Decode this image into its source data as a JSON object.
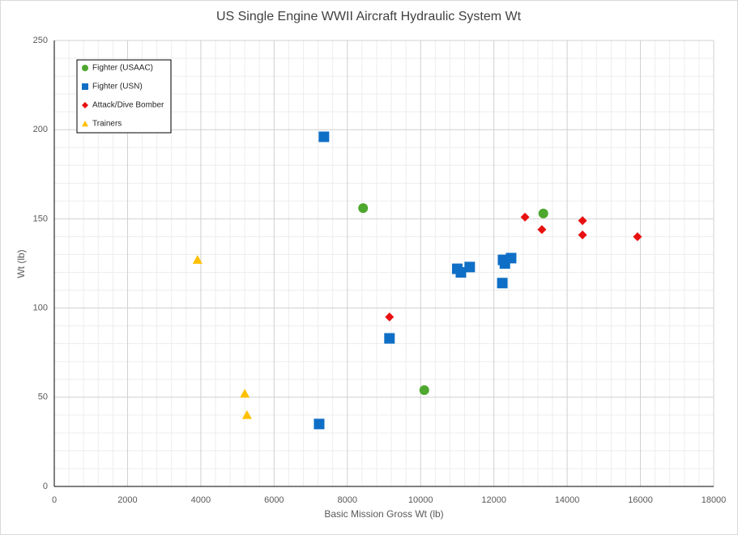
{
  "chart_data": {
    "type": "scatter",
    "title": "US Single Engine WWII Aircraft Hydraulic System Wt",
    "x_label": "Basic Mission Gross Wt (lb)",
    "y_label": "Wt (lb)",
    "xlim": [
      0,
      18000
    ],
    "xticks": [
      0,
      2000,
      4000,
      6000,
      8000,
      10000,
      12000,
      14000,
      16000,
      18000
    ],
    "ylim": [
      0,
      250
    ],
    "yticks": [
      0,
      50,
      100,
      150,
      200,
      250
    ],
    "grid": true,
    "legend": "upper-left",
    "series": [
      {
        "name": "Fighter (USAAC)",
        "color": "#4ea72e",
        "marker": "circle",
        "x": [
          8430,
          13350,
          10100
        ],
        "values": [
          156,
          153,
          54
        ]
      },
      {
        "name": "Fighter (USN)",
        "color": "#0f6fc6",
        "marker": "square",
        "x": [
          7360,
          7230,
          9150,
          11000,
          11100,
          11340,
          12230,
          12250,
          12300,
          12470
        ],
        "values": [
          196,
          35,
          83,
          122,
          120,
          123,
          114,
          127,
          125,
          128
        ]
      },
      {
        "name": "Attack/Dive Bomber",
        "color": "#e81010",
        "marker": "diamond",
        "x": [
          9150,
          12850,
          13310,
          14420,
          14420,
          15920
        ],
        "values": [
          95,
          151,
          144,
          149,
          141,
          140
        ]
      },
      {
        "name": "Trainers",
        "color": "#ffc000",
        "marker": "triangle",
        "x": [
          3910,
          5200,
          5260
        ],
        "values": [
          127,
          52,
          40
        ]
      }
    ]
  }
}
